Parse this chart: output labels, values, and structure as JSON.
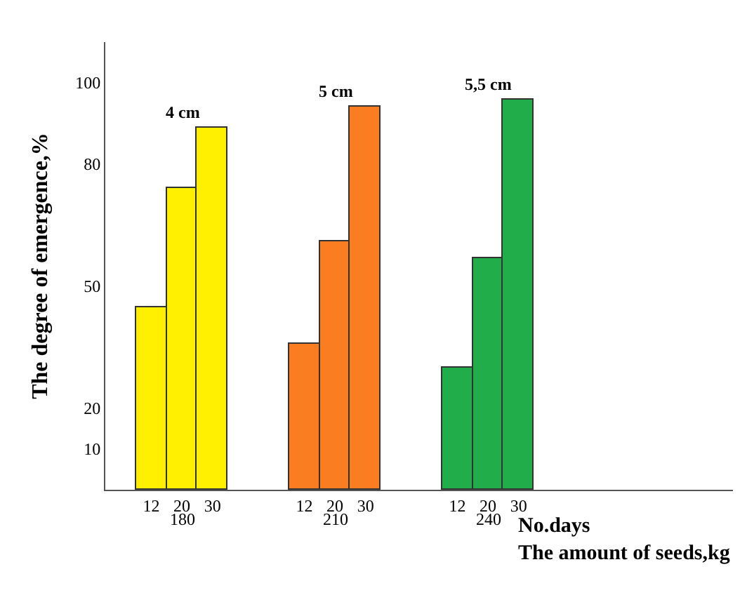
{
  "chart_data": {
    "type": "bar",
    "categories": [
      "12",
      "20",
      "30",
      null,
      null,
      "12",
      "20",
      "30",
      null,
      null,
      "12",
      "20",
      "30"
    ],
    "series": [
      {
        "name": "4 cm",
        "color": "#ffef00",
        "values": [
          45,
          74,
          89,
          null,
          null,
          null,
          null,
          null,
          null,
          null,
          null,
          null,
          null
        ]
      },
      {
        "name": "5 cm",
        "color": "#fb7d22",
        "values": [
          null,
          null,
          null,
          null,
          null,
          36,
          61,
          94,
          null,
          null,
          null,
          null,
          null
        ]
      },
      {
        "name": "5,5 cm",
        "color": "#21ad4a",
        "values": [
          null,
          null,
          null,
          null,
          null,
          null,
          null,
          null,
          null,
          null,
          30,
          57,
          96
        ]
      }
    ],
    "stacked": true,
    "ylabel": "The degree of emergence,%",
    "xlabel": "No.days\nThe amount of seeds,kg",
    "annotations": [
      "180",
      "210",
      "240"
    ],
    "ylim": [
      0,
      110
    ],
    "yticks": [
      10,
      20,
      50,
      80,
      100
    ],
    "legend": false
  }
}
